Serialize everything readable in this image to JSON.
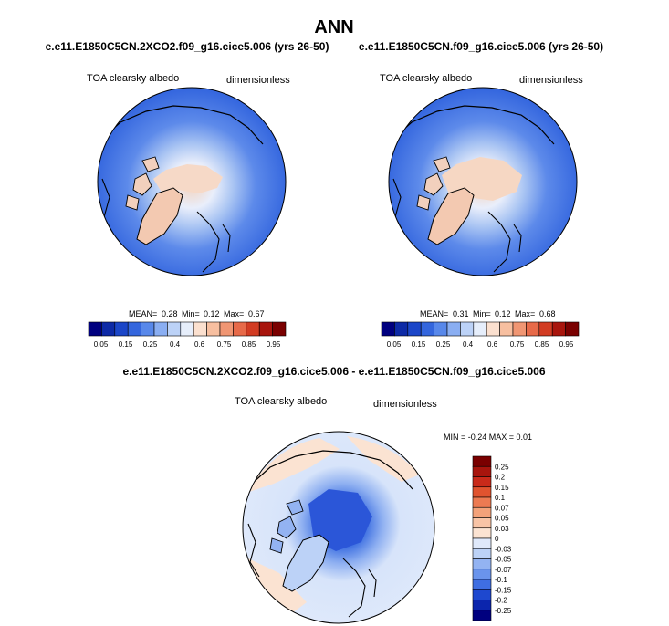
{
  "page_title": "ANN",
  "colors": {
    "land_outline": "#000000",
    "ice_fill": "#f6d7c3",
    "ocean_deep": "#2f62dd",
    "ocean_mid": "#5b88ea",
    "ocean_light": "#a9c4f2",
    "pale": "#dde8fb"
  },
  "chart_data": [
    {
      "type": "heatmap",
      "projection": "polar-stereographic-north",
      "title": "e.e11.E1850C5CN.2XCO2.f09_g16.cice5.006 (yrs 26-50)",
      "variable": "TOA clearsky albedo",
      "units": "dimensionless",
      "mean_label": "MEAN=",
      "mean": "0.28",
      "min_label": "Min=",
      "min": "0.12",
      "max_label": "Max=",
      "max": "0.67",
      "colorbar": {
        "orientation": "horizontal",
        "colors": [
          "#00007f",
          "#0d2aa6",
          "#1b46c8",
          "#3466dd",
          "#5888ea",
          "#8aaef2",
          "#bcd2f7",
          "#e6eefb",
          "#fbe0cf",
          "#f7bfa0",
          "#f09673",
          "#e76a49",
          "#d23c23",
          "#a8150d",
          "#7a0000"
        ],
        "tick_labels": [
          "0.05",
          "0.15",
          "0.25",
          "0.4",
          "0.6",
          "0.75",
          "0.85",
          "0.95"
        ]
      }
    },
    {
      "type": "heatmap",
      "projection": "polar-stereographic-north",
      "title": "e.e11.E1850C5CN.f09_g16.cice5.006 (yrs 26-50)",
      "variable": "TOA clearsky albedo",
      "units": "dimensionless",
      "mean_label": "MEAN=",
      "mean": "0.31",
      "min_label": "Min=",
      "min": "0.12",
      "max_label": "Max=",
      "max": "0.68",
      "colorbar": {
        "orientation": "horizontal",
        "colors": [
          "#00007f",
          "#0d2aa6",
          "#1b46c8",
          "#3466dd",
          "#5888ea",
          "#8aaef2",
          "#bcd2f7",
          "#e6eefb",
          "#fbe0cf",
          "#f7bfa0",
          "#f09673",
          "#e76a49",
          "#d23c23",
          "#a8150d",
          "#7a0000"
        ],
        "tick_labels": [
          "0.05",
          "0.15",
          "0.25",
          "0.4",
          "0.6",
          "0.75",
          "0.85",
          "0.95"
        ]
      }
    },
    {
      "type": "heatmap",
      "projection": "polar-stereographic-north",
      "title": "e.e11.E1850C5CN.2XCO2.f09_g16.cice5.006 - e.e11.E1850C5CN.f09_g16.cice5.006",
      "variable": "TOA clearsky albedo",
      "units": "dimensionless",
      "min_max_text": "MIN = -0.24 MAX = 0.01",
      "colorbar": {
        "orientation": "vertical",
        "colors": [
          "#7a0000",
          "#a8150d",
          "#c92a1a",
          "#e0532f",
          "#ec7a52",
          "#f3a27a",
          "#f8c4a6",
          "#fbe3d2",
          "#dfe9fb",
          "#bcd2f7",
          "#93b3f2",
          "#6a94ec",
          "#3f6ee2",
          "#1e48cf",
          "#0b25ad",
          "#00007f"
        ],
        "tick_labels": [
          "0.25",
          "0.2",
          "0.15",
          "0.1",
          "0.07",
          "0.05",
          "0.03",
          "0",
          "-0.03",
          "-0.05",
          "-0.07",
          "-0.1",
          "-0.15",
          "-0.2",
          "-0.25"
        ]
      }
    }
  ]
}
